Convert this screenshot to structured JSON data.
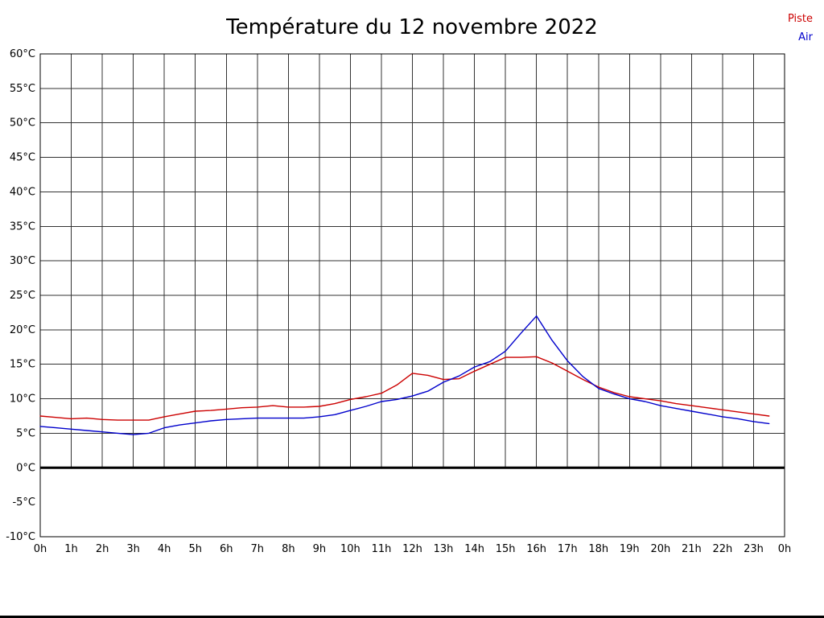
{
  "title": "Température du 12 novembre 2022",
  "legend": [
    {
      "label": "Piste",
      "color": "#cc0000"
    },
    {
      "label": "Air",
      "color": "#0000cc"
    }
  ],
  "chart_data": {
    "type": "line",
    "title": "Température du 12 novembre 2022",
    "xlabel": "",
    "ylabel": "",
    "xlim": [
      0,
      24
    ],
    "ylim": [
      -10,
      60
    ],
    "x_start": 0,
    "x_step": 0.5,
    "grid": true,
    "grid_color": "#333333",
    "frame_color": "#000000",
    "zero_line_color": "#000000",
    "x_labels": [
      "0h",
      "1h",
      "2h",
      "3h",
      "4h",
      "5h",
      "6h",
      "7h",
      "8h",
      "9h",
      "10h",
      "11h",
      "12h",
      "13h",
      "14h",
      "15h",
      "16h",
      "17h",
      "18h",
      "19h",
      "20h",
      "21h",
      "22h",
      "23h",
      "0h"
    ],
    "y_ticks": [
      {
        "value": 60,
        "label": "60°C"
      },
      {
        "value": 55,
        "label": "55°C"
      },
      {
        "value": 50,
        "label": "50°C"
      },
      {
        "value": 45,
        "label": "45°C"
      },
      {
        "value": 40,
        "label": "40°C"
      },
      {
        "value": 35,
        "label": "35°C"
      },
      {
        "value": 30,
        "label": "30°C"
      },
      {
        "value": 25,
        "label": "25°C"
      },
      {
        "value": 20,
        "label": "20°C"
      },
      {
        "value": 15,
        "label": "15°C"
      },
      {
        "value": 10,
        "label": "10°C"
      },
      {
        "value": 5,
        "label": "5°C"
      },
      {
        "value": 0,
        "label": "0°C"
      },
      {
        "value": -5,
        "label": "-5°C"
      },
      {
        "value": -10,
        "label": "-10°C"
      }
    ],
    "series": [
      {
        "name": "Piste",
        "color": "#cc0000",
        "values": [
          7.5,
          7.3,
          7.1,
          7.2,
          7.0,
          6.9,
          6.9,
          6.9,
          7.4,
          7.8,
          8.2,
          8.3,
          8.5,
          8.7,
          8.8,
          9.0,
          8.8,
          8.8,
          8.9,
          9.3,
          9.9,
          10.3,
          10.8,
          12.0,
          13.7,
          13.4,
          12.8,
          12.9,
          14.0,
          15.0,
          16.0,
          16.0,
          16.1,
          15.2,
          14.0,
          12.8,
          11.7,
          10.9,
          10.3,
          10.0,
          9.7,
          9.3,
          9.0,
          8.7,
          8.4,
          8.1,
          7.8,
          7.5
        ]
      },
      {
        "name": "Air",
        "color": "#0000cc",
        "values": [
          6.0,
          5.8,
          5.6,
          5.4,
          5.2,
          5.0,
          4.8,
          5.0,
          5.8,
          6.2,
          6.5,
          6.8,
          7.0,
          7.1,
          7.2,
          7.2,
          7.2,
          7.2,
          7.4,
          7.7,
          8.3,
          8.9,
          9.6,
          9.9,
          10.4,
          11.1,
          12.4,
          13.3,
          14.6,
          15.4,
          16.9,
          19.5,
          22.0,
          18.5,
          15.5,
          13.2,
          11.5,
          10.7,
          10.0,
          9.6,
          9.0,
          8.6,
          8.2,
          7.8,
          7.4,
          7.1,
          6.7,
          6.4
        ]
      }
    ]
  }
}
